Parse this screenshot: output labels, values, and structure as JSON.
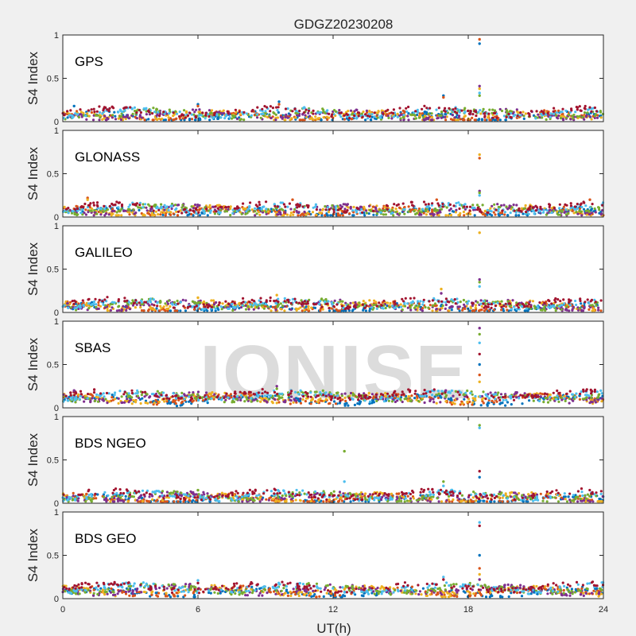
{
  "chart_data": {
    "type": "scatter",
    "title": "GDGZ20230208",
    "xlabel": "UT(h)",
    "xlim": [
      0,
      24
    ],
    "xticks": [
      "0",
      "6",
      "12",
      "18",
      "24"
    ],
    "ylabel": "S4 Index",
    "ylim": [
      0,
      1
    ],
    "yticks": [
      "0",
      "0.5",
      "1"
    ],
    "grid": false,
    "watermark": "IONISE",
    "series_colors": [
      "#0072BD",
      "#D95319",
      "#EDB120",
      "#7E2F8E",
      "#77AC30",
      "#4DBEEE",
      "#A2142F"
    ],
    "panels": [
      {
        "label": "GPS",
        "baseline": 0.08,
        "spikes": [
          {
            "x": 18.5,
            "y": [
              0.9,
              0.95,
              0.38,
              0.41,
              0.3,
              0.33
            ]
          },
          {
            "x": 16.9,
            "y": [
              0.3,
              0.28
            ]
          },
          {
            "x": 9.6,
            "y": [
              0.23,
              0.2
            ]
          },
          {
            "x": 0.5,
            "y": [
              0.18
            ]
          },
          {
            "x": 6.0,
            "y": [
              0.2,
              0.18
            ]
          }
        ]
      },
      {
        "label": "GLONASS",
        "baseline": 0.08,
        "spikes": [
          {
            "x": 18.5,
            "y": [
              0.68,
              0.72,
              0.3,
              0.28,
              0.25
            ]
          },
          {
            "x": 1.1,
            "y": [
              0.22,
              0.2
            ]
          },
          {
            "x": 10.2,
            "y": [
              0.2
            ]
          },
          {
            "x": 16.6,
            "y": [
              0.2
            ]
          },
          {
            "x": 23.4,
            "y": [
              0.2
            ]
          }
        ]
      },
      {
        "label": "GALILEO",
        "baseline": 0.08,
        "spikes": [
          {
            "x": 18.5,
            "y": [
              0.92,
              0.38,
              0.35,
              0.3
            ]
          },
          {
            "x": 16.8,
            "y": [
              0.27,
              0.22
            ]
          },
          {
            "x": 9.5,
            "y": [
              0.2
            ]
          },
          {
            "x": 6.0,
            "y": [
              0.17
            ]
          }
        ]
      },
      {
        "label": "SBAS",
        "baseline": 0.12,
        "spikes": [
          {
            "x": 18.5,
            "y": [
              0.92,
              0.85,
              0.75,
              0.62,
              0.5,
              0.38,
              0.3
            ]
          },
          {
            "x": 9.5,
            "y": [
              0.25,
              0.22
            ]
          },
          {
            "x": 0.5,
            "y": [
              0.2
            ]
          },
          {
            "x": 17.0,
            "y": [
              0.2
            ]
          }
        ]
      },
      {
        "label": "BDS NGEO",
        "baseline": 0.07,
        "spikes": [
          {
            "x": 18.5,
            "y": [
              0.9,
              0.87,
              0.37,
              0.3
            ]
          },
          {
            "x": 12.5,
            "y": [
              0.6,
              0.25
            ]
          },
          {
            "x": 16.9,
            "y": [
              0.25,
              0.2
            ]
          },
          {
            "x": 6.0,
            "y": [
              0.15
            ]
          }
        ]
      },
      {
        "label": "BDS GEO",
        "baseline": 0.1,
        "spikes": [
          {
            "x": 18.5,
            "y": [
              0.88,
              0.84,
              0.5,
              0.35,
              0.28,
              0.22
            ]
          },
          {
            "x": 16.9,
            "y": [
              0.25,
              0.22
            ]
          },
          {
            "x": 6.0,
            "y": [
              0.21,
              0.18
            ]
          }
        ]
      }
    ]
  }
}
